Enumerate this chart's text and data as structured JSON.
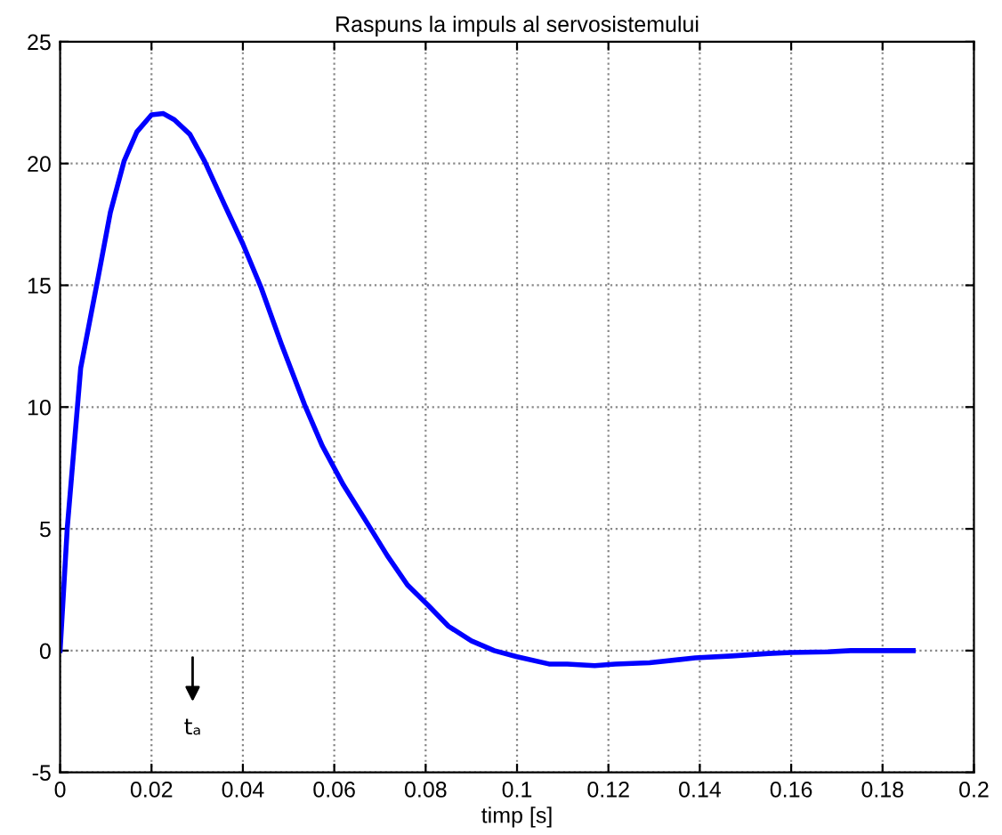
{
  "chart_data": {
    "type": "line",
    "title": "Raspuns la impuls al servosistemului",
    "xlabel": "timp [s]",
    "x": [
      0,
      0.00155,
      0.0045,
      0.0084,
      0.011,
      0.014,
      0.0168,
      0.02,
      0.0226,
      0.025,
      0.0284,
      0.0316,
      0.036,
      0.04,
      0.044,
      0.0484,
      0.0535,
      0.0574,
      0.062,
      0.067,
      0.0716,
      0.076,
      0.0806,
      0.085,
      0.09,
      0.095,
      0.1,
      0.107,
      0.111,
      0.117,
      0.1215,
      0.129,
      0.139,
      0.147,
      0.155,
      0.16,
      0.168,
      0.173,
      0.1867
    ],
    "series": [
      {
        "color": "#0000ff",
        "values": [
          0,
          5.0,
          11.6,
          15.4,
          18.0,
          20.1,
          21.3,
          22.0,
          22.05,
          21.8,
          21.2,
          20.1,
          18.3,
          16.7,
          14.9,
          12.6,
          10.1,
          8.4,
          6.8,
          5.3,
          3.9,
          2.7,
          1.85,
          1.0,
          0.4,
          0,
          -0.25,
          -0.55,
          -0.55,
          -0.62,
          -0.55,
          -0.5,
          -0.3,
          -0.22,
          -0.12,
          -0.08,
          -0.05,
          0,
          0
        ]
      }
    ],
    "annotations": [
      "tₐ"
    ],
    "xlim": [
      0,
      0.2
    ],
    "xticks": [
      0,
      0.02,
      0.04,
      0.06,
      0.08,
      0.1,
      0.12,
      0.14,
      0.16,
      0.18,
      0.2
    ],
    "ylim": [
      -5,
      25
    ],
    "yticks": [
      -5,
      0,
      5,
      10,
      15,
      20,
      25
    ],
    "grid": true,
    "marker": "none",
    "line_style": "solid"
  }
}
